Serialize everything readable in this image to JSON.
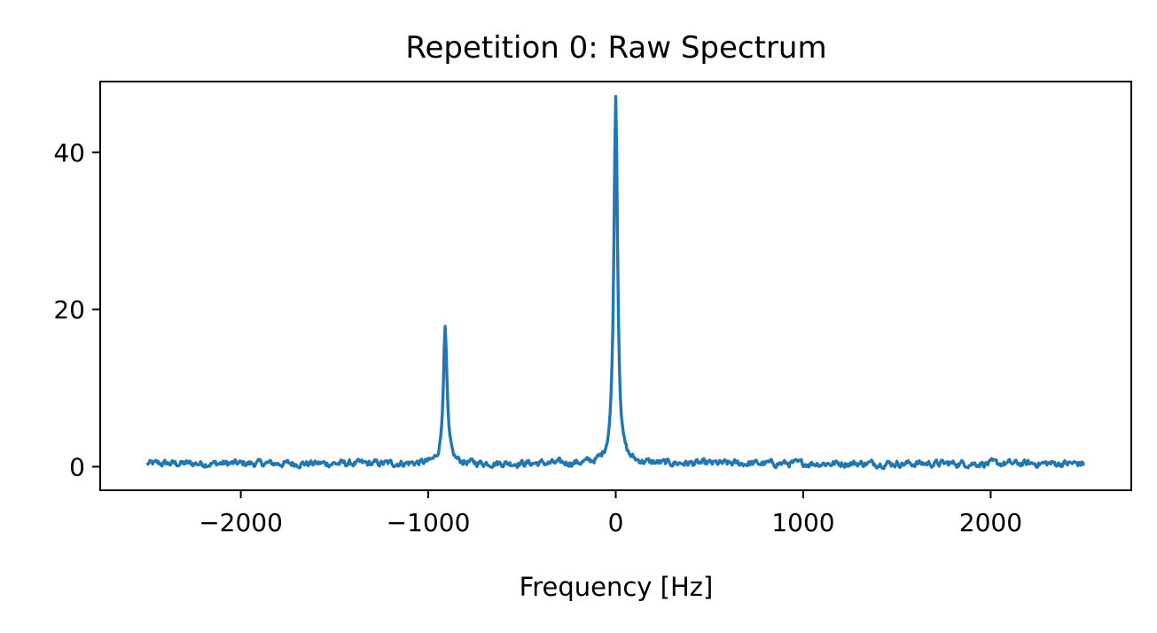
{
  "chart_data": {
    "type": "line",
    "title": "Repetition 0: Raw Spectrum",
    "xlabel": "Frequency [Hz]",
    "ylabel": "",
    "xlim": [
      -2750,
      2750
    ],
    "ylim": [
      -3,
      49
    ],
    "x_ticks": [
      -2000,
      -1000,
      0,
      1000,
      2000
    ],
    "x_tick_labels": [
      "−2000",
      "−1000",
      "0",
      "1000",
      "2000"
    ],
    "y_ticks": [
      0,
      20,
      40
    ],
    "y_tick_labels": [
      "0",
      "20",
      "40"
    ],
    "grid": false,
    "legend": "none",
    "series": [
      {
        "color": "#1f77b4",
        "x_range": [
          -2500,
          2500
        ],
        "baseline": 0.4,
        "noise_amplitude": 0.5,
        "peaks": [
          {
            "center": -910,
            "height": 17.2,
            "half_width": 12
          },
          {
            "center": 0,
            "height": 46.8,
            "half_width": 12
          }
        ]
      }
    ]
  }
}
